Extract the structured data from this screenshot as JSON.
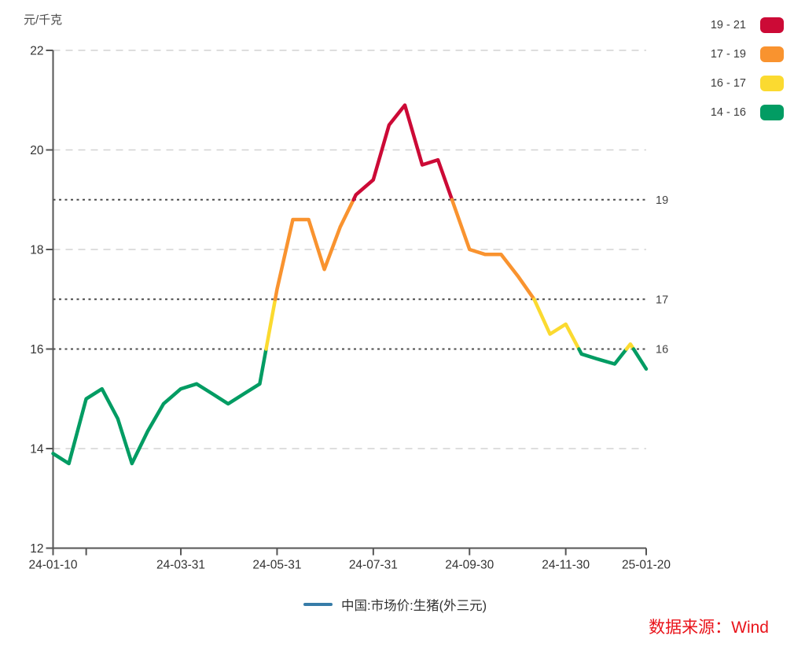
{
  "chart_data": {
    "type": "line",
    "title": "",
    "ylabel": "元/千克",
    "xlabel": "",
    "ylim": [
      12,
      22
    ],
    "grid": true,
    "legend_position": "top-right",
    "y_ticks": [
      22,
      20,
      18,
      16,
      14,
      12
    ],
    "x_tick_labels": [
      "24-01-10",
      "24-03-31",
      "24-05-31",
      "24-07-31",
      "24-09-30",
      "24-11-30",
      "25-01-20"
    ],
    "minor_x_ticks": [
      "24-01-31"
    ],
    "major_gridlines": [
      22,
      20,
      18,
      14
    ],
    "threshold_lines": [
      {
        "value": 19,
        "label": "19"
      },
      {
        "value": 17,
        "label": "17"
      },
      {
        "value": 16,
        "label": "16"
      }
    ],
    "bands": [
      {
        "label": "19 - 21",
        "min": 19,
        "max": 21,
        "color": "#CC0A36"
      },
      {
        "label": "17 - 19",
        "min": 17,
        "max": 19,
        "color": "#F9932F"
      },
      {
        "label": "16 - 17",
        "min": 16,
        "max": 17,
        "color": "#FBDA30"
      },
      {
        "label": "14 - 16",
        "min": 14,
        "max": 16,
        "color": "#029C63"
      }
    ],
    "series": [
      {
        "name": "中国:市场价:生猪(外三元)",
        "x": [
          "24-01-10",
          "24-01-20",
          "24-01-31",
          "24-02-10",
          "24-02-20",
          "24-02-29",
          "24-03-10",
          "24-03-20",
          "24-03-31",
          "24-04-10",
          "24-04-20",
          "24-04-30",
          "24-05-10",
          "24-05-20",
          "24-05-31",
          "24-06-10",
          "24-06-20",
          "24-06-30",
          "24-07-10",
          "24-07-20",
          "24-07-31",
          "24-08-10",
          "24-08-20",
          "24-08-31",
          "24-09-10",
          "24-09-20",
          "24-09-30",
          "24-10-10",
          "24-10-20",
          "24-10-31",
          "24-11-10",
          "24-11-20",
          "24-11-30",
          "24-12-10",
          "24-12-20",
          "24-12-31",
          "25-01-10",
          "25-01-20"
        ],
        "values": [
          13.9,
          13.7,
          15.0,
          15.2,
          14.6,
          13.7,
          14.35,
          14.9,
          15.2,
          15.3,
          15.1,
          14.9,
          15.1,
          15.3,
          17.2,
          18.6,
          18.6,
          17.6,
          18.45,
          19.1,
          19.4,
          20.5,
          20.9,
          19.7,
          19.8,
          18.9,
          18.0,
          17.9,
          17.9,
          17.45,
          17.0,
          16.3,
          16.5,
          15.9,
          15.8,
          15.7,
          16.1,
          15.6
        ]
      }
    ]
  },
  "footer": {
    "series_legend_label": "中国:市场价:生猪(外三元)",
    "series_legend_color": "#377CA8",
    "source_label": "数据来源：Wind",
    "source_color": "#E9141B"
  }
}
